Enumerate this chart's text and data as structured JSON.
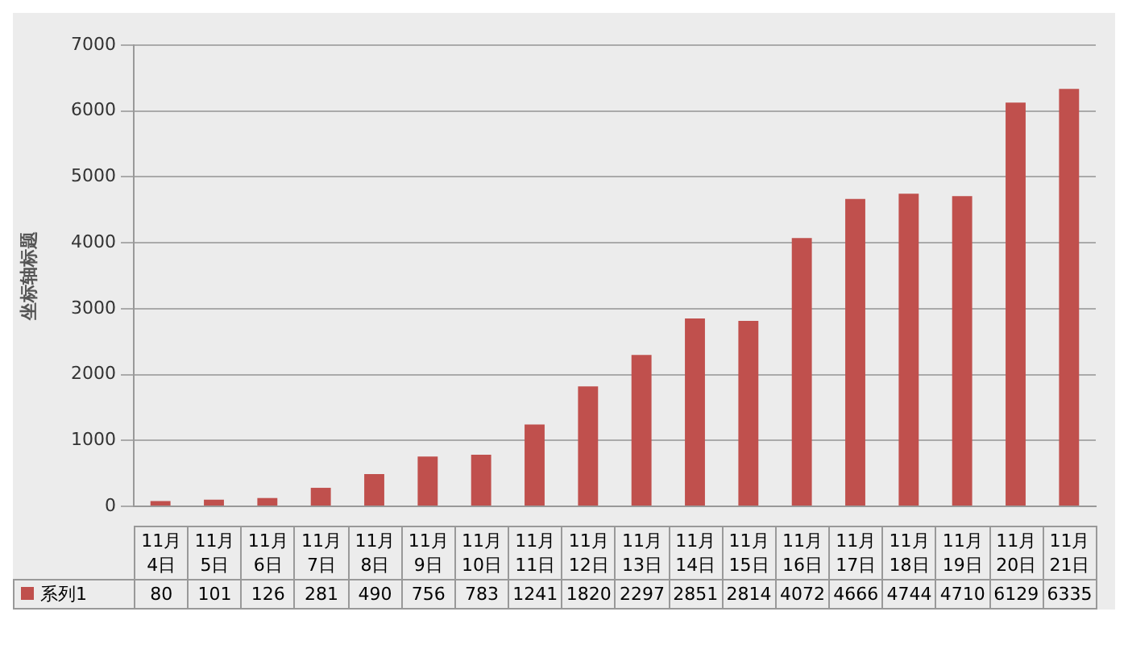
{
  "chart_data": {
    "type": "bar",
    "ylabel": "坐标轴标题",
    "categories": [
      "11月4日",
      "11月5日",
      "11月6日",
      "11月7日",
      "11月8日",
      "11月9日",
      "11月10日",
      "11月11日",
      "11月12日",
      "11月13日",
      "11月14日",
      "11月15日",
      "11月16日",
      "11月17日",
      "11月18日",
      "11月19日",
      "11月20日",
      "11月21日"
    ],
    "series": [
      {
        "name": "系列1",
        "color": "#c0504d",
        "values": [
          80,
          101,
          126,
          281,
          490,
          756,
          783,
          1241,
          1820,
          2297,
          2851,
          2814,
          4072,
          4666,
          4744,
          4710,
          6129,
          6335
        ]
      }
    ],
    "ylim": [
      0,
      7000
    ],
    "yticks": [
      0,
      1000,
      2000,
      3000,
      4000,
      5000,
      6000,
      7000
    ],
    "grid": "y",
    "legend": "bottom",
    "data_labels": true
  }
}
